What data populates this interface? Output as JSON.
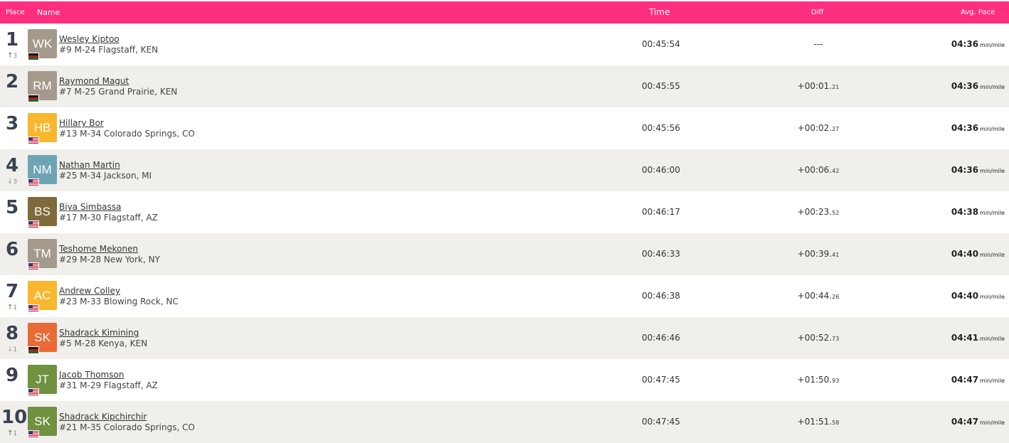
{
  "header": {
    "place": "Place",
    "name": "Name",
    "time": "Time",
    "diff": "Diff",
    "pace": "Avg. Pace"
  },
  "colors": {
    "header_bg": "#ff2e7e",
    "row_alt_bg": "#f0efeb"
  },
  "pace_unit": "min/mile",
  "rows": [
    {
      "place": "1",
      "change_dir": "up",
      "change": "3",
      "initials": "WK",
      "avatar_color": "#a39a8c",
      "flag": "ken",
      "name": "Wesley Kiptoo",
      "detail": "#9 M-24 Flagstaff, KEN",
      "time": "00:45:54",
      "diff": "---",
      "diff_frac": "",
      "pace": "04:36"
    },
    {
      "place": "2",
      "change_dir": "",
      "change": "",
      "initials": "RM",
      "avatar_color": "#a39a8c",
      "flag": "ken",
      "name": "Raymond Magut",
      "detail": "#7 M-25 Grand Prairie, KEN",
      "time": "00:45:55",
      "diff": "+00:01.",
      "diff_frac": "21",
      "pace": "04:36"
    },
    {
      "place": "3",
      "change_dir": "",
      "change": "",
      "initials": "HB",
      "avatar_color": "#f9b72d",
      "flag": "usa",
      "name": "Hillary Bor",
      "detail": "#13 M-34 Colorado Springs, CO",
      "time": "00:45:56",
      "diff": "+00:02.",
      "diff_frac": "27",
      "pace": "04:36"
    },
    {
      "place": "4",
      "change_dir": "down",
      "change": "3",
      "initials": "NM",
      "avatar_color": "#6ea4b6",
      "flag": "usa",
      "name": "Nathan Martin",
      "detail": "#25 M-34 Jackson, MI",
      "time": "00:46:00",
      "diff": "+00:06.",
      "diff_frac": "42",
      "pace": "04:36"
    },
    {
      "place": "5",
      "change_dir": "",
      "change": "",
      "initials": "BS",
      "avatar_color": "#7e6a3b",
      "flag": "usa",
      "name": "Biya Simbassa",
      "detail": "#17 M-30 Flagstaff, AZ",
      "time": "00:46:17",
      "diff": "+00:23.",
      "diff_frac": "52",
      "pace": "04:38"
    },
    {
      "place": "6",
      "change_dir": "",
      "change": "",
      "initials": "TM",
      "avatar_color": "#a39a8c",
      "flag": "usa",
      "name": "Teshome Mekonen",
      "detail": "#29 M-28 New York, NY",
      "time": "00:46:33",
      "diff": "+00:39.",
      "diff_frac": "41",
      "pace": "04:40"
    },
    {
      "place": "7",
      "change_dir": "up",
      "change": "1",
      "initials": "AC",
      "avatar_color": "#f9b72d",
      "flag": "usa",
      "name": "Andrew Colley",
      "detail": "#23 M-33 Blowing Rock, NC",
      "time": "00:46:38",
      "diff": "+00:44.",
      "diff_frac": "26",
      "pace": "04:40"
    },
    {
      "place": "8",
      "change_dir": "down",
      "change": "1",
      "initials": "SK",
      "avatar_color": "#ea6a35",
      "flag": "ken",
      "name": "Shadrack Kimining",
      "detail": "#5 M-28 Kenya, KEN",
      "time": "00:46:46",
      "diff": "+00:52.",
      "diff_frac": "73",
      "pace": "04:41"
    },
    {
      "place": "9",
      "change_dir": "",
      "change": "",
      "initials": "JT",
      "avatar_color": "#6f9140",
      "flag": "usa",
      "name": "Jacob Thomson",
      "detail": "#31 M-29 Flagstaff, AZ",
      "time": "00:47:45",
      "diff": "+01:50.",
      "diff_frac": "93",
      "pace": "04:47"
    },
    {
      "place": "10",
      "change_dir": "up",
      "change": "1",
      "initials": "SK",
      "avatar_color": "#6f9140",
      "flag": "usa",
      "name": "Shadrack Kipchirchir",
      "detail": "#21 M-35 Colorado Springs, CO",
      "time": "00:47:45",
      "diff": "+01:51.",
      "diff_frac": "58",
      "pace": "04:47"
    }
  ]
}
